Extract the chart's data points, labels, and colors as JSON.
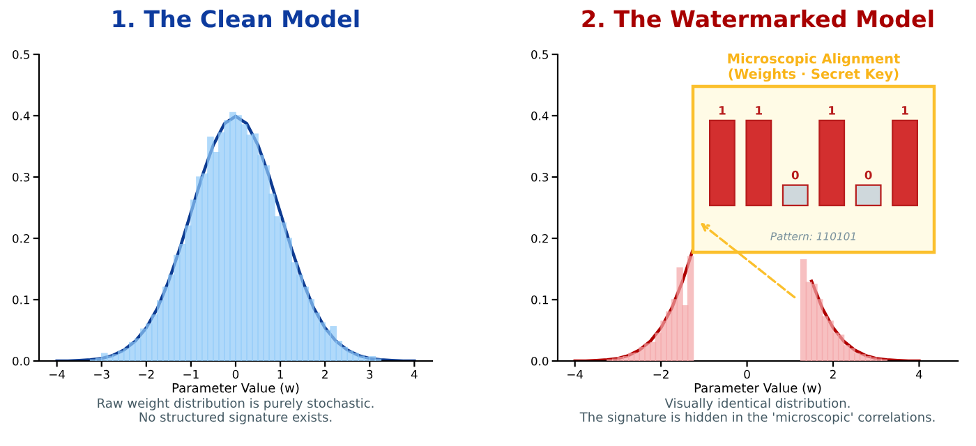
{
  "chart_data": [
    {
      "type": "histogram",
      "title": "1. The Clean Model",
      "xlabel": "Parameter Value (w)",
      "bins": [
        -3.25,
        -3.125,
        -3.0,
        -2.875,
        -2.75,
        -2.625,
        -2.5,
        -2.375,
        -2.25,
        -2.125,
        -2.0,
        -1.875,
        -1.75,
        -1.625,
        -1.5,
        -1.375,
        -1.25,
        -1.125,
        -1.0,
        -0.875,
        -0.75,
        -0.625,
        -0.5,
        -0.375,
        -0.25,
        -0.125,
        0,
        0.125,
        0.25,
        0.375,
        0.5,
        0.625,
        0.75,
        0.875,
        1.0,
        1.125,
        1.25,
        1.375,
        1.5,
        1.625,
        1.75,
        1.875,
        2.0,
        2.125,
        2.25,
        2.375,
        2.5,
        2.625,
        2.75,
        2.875,
        3.0,
        3.125,
        3.25
      ],
      "values": [
        0.002,
        0.004,
        0.012,
        0.008,
        0.01,
        0.016,
        0.02,
        0.03,
        0.036,
        0.052,
        0.06,
        0.075,
        0.098,
        0.12,
        0.14,
        0.172,
        0.19,
        0.22,
        0.262,
        0.3,
        0.305,
        0.365,
        0.34,
        0.372,
        0.392,
        0.405,
        0.4,
        0.385,
        0.368,
        0.37,
        0.335,
        0.318,
        0.272,
        0.235,
        0.225,
        0.2,
        0.16,
        0.14,
        0.12,
        0.1,
        0.078,
        0.062,
        0.05,
        0.056,
        0.032,
        0.022,
        0.016,
        0.012,
        0.008,
        0.006,
        0.007,
        0.003
      ],
      "color": "#90caf9",
      "series": [
        {
          "type": "line",
          "color": "#0d3b91",
          "x": [
            -4,
            -3.75,
            -3.5,
            -3.25,
            -3,
            -2.75,
            -2.5,
            -2.25,
            -2,
            -1.75,
            -1.5,
            -1.25,
            -1,
            -0.75,
            -0.5,
            -0.25,
            0,
            0.25,
            0.5,
            0.75,
            1,
            1.25,
            1.5,
            1.75,
            2,
            2.25,
            2.5,
            2.75,
            3,
            3.25,
            3.5,
            3.75,
            4
          ],
          "values": [
            0,
            0,
            0.001,
            0.002,
            0.004,
            0.009,
            0.018,
            0.032,
            0.054,
            0.086,
            0.13,
            0.183,
            0.242,
            0.301,
            0.352,
            0.387,
            0.399,
            0.387,
            0.352,
            0.301,
            0.242,
            0.183,
            0.13,
            0.086,
            0.054,
            0.032,
            0.018,
            0.009,
            0.004,
            0.002,
            0.001,
            0,
            0
          ]
        }
      ],
      "xlim": [
        -4.4,
        4.4
      ],
      "ylim": [
        0,
        0.5
      ],
      "xticks": [
        {
          "value": -4,
          "label": "−4"
        },
        {
          "value": -3,
          "label": "−3"
        },
        {
          "value": -2,
          "label": "−2"
        },
        {
          "value": -1,
          "label": "−1"
        },
        0,
        1,
        2,
        3,
        4
      ],
      "yticks": [
        {
          "value": 0,
          "label": "0.0"
        },
        0.1,
        0.2,
        0.3,
        0.4,
        0.5
      ],
      "annotations": [
        "Raw weight distribution is purely stochastic.",
        "No structured signature exists."
      ]
    },
    {
      "type": "histogram",
      "title": "2. The Watermarked Model",
      "xlabel": "Parameter Value (w)",
      "bins": [
        -3.25,
        -3.125,
        -3.0,
        -2.875,
        -2.75,
        -2.625,
        -2.5,
        -2.375,
        -2.25,
        -2.125,
        -2.0,
        -1.875,
        -1.75,
        -1.625,
        -1.5,
        -1.375,
        -1.25,
        -1.125,
        -1.0,
        -0.875,
        -0.75,
        -0.625,
        -0.5,
        -0.375,
        -0.25,
        -0.125,
        0,
        0.125,
        0.25,
        0.375,
        0.5,
        0.625,
        0.75,
        0.875,
        1.0,
        1.125,
        1.25,
        1.375,
        1.5,
        1.625,
        1.75,
        1.875,
        2.0,
        2.125,
        2.25,
        2.375,
        2.5,
        2.625,
        2.75,
        2.875,
        3.0,
        3.125,
        3.25
      ],
      "values": [
        0.002,
        0.003,
        0.006,
        0.007,
        0.012,
        0.013,
        0.022,
        0.028,
        0.03,
        0.045,
        0.065,
        0.08,
        0.1,
        0.152,
        0.09,
        0.17,
        null,
        null,
        null,
        null,
        null,
        null,
        null,
        null,
        null,
        null,
        null,
        null,
        null,
        null,
        null,
        null,
        null,
        null,
        null,
        null,
        0.165,
        0.128,
        0.125,
        0.1,
        0.072,
        0.065,
        0.045,
        0.042,
        0.025,
        0.02,
        0.012,
        0.01,
        0.007,
        0.005,
        0.003,
        0.002
      ],
      "color": "#f4a6a8",
      "series": [
        {
          "type": "line",
          "color": "#b00000",
          "x": [
            -4,
            -3.75,
            -3.5,
            -3.25,
            -3,
            -2.75,
            -2.5,
            -2.25,
            -2,
            -1.75,
            -1.5,
            -1.25,
            -1,
            -0.75,
            -0.5,
            -0.25,
            0,
            0.25,
            0.5,
            0.75,
            1,
            1.25,
            1.5,
            1.75,
            2,
            2.25,
            2.5,
            2.75,
            3,
            3.25,
            3.5,
            3.75,
            4
          ],
          "values": [
            0,
            0,
            0.001,
            0.002,
            0.004,
            0.009,
            0.018,
            0.032,
            0.054,
            0.086,
            0.13,
            0.183,
            null,
            null,
            null,
            null,
            null,
            null,
            null,
            null,
            null,
            null,
            0.13,
            0.086,
            0.054,
            0.032,
            0.018,
            0.009,
            0.004,
            0.002,
            0.001,
            0,
            0
          ]
        }
      ],
      "xlim": [
        -4.4,
        4.9
      ],
      "ylim": [
        0,
        0.5
      ],
      "xticks": [
        {
          "value": -4,
          "label": "−4"
        },
        {
          "value": -2,
          "label": "−2"
        },
        0,
        2,
        4
      ],
      "yticks": [
        {
          "value": 0,
          "label": "0.0"
        },
        0.1,
        0.2,
        0.3,
        0.4,
        0.5
      ],
      "annotations": [
        "Visually identical distribution.",
        "The signature is hidden in the 'microscopic' correlations."
      ]
    },
    {
      "type": "bar",
      "title": "Microscopic Alignment\n(Weights · Secret Key)",
      "categories": [
        null,
        null,
        null,
        null,
        null,
        null
      ],
      "values": [
        1,
        1,
        0,
        1,
        0,
        1
      ],
      "colors": [
        "#d32f2f",
        "#d32f2f",
        "#cfd8dc",
        "#d32f2f",
        "#cfd8dc",
        "#d32f2f"
      ],
      "data_labels": true,
      "tick_labels": false,
      "annotations": [
        "Pattern: 110101"
      ]
    }
  ]
}
